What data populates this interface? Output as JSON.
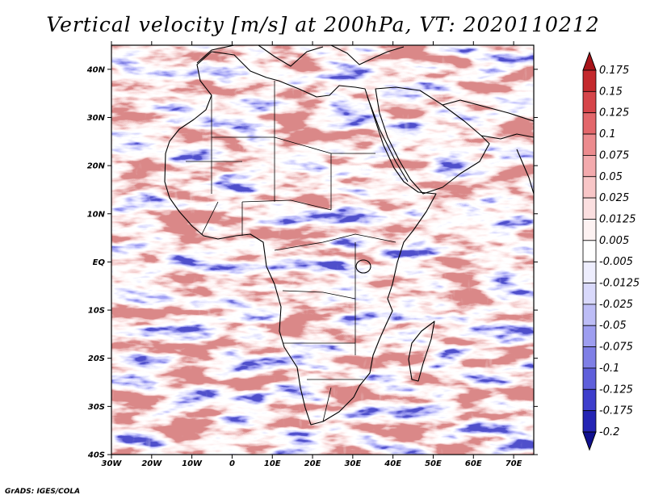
{
  "title": "Vertical velocity [m/s] at 200hPa, VT: 2020110212",
  "credit": "GrADS: IGES/COLA",
  "map": {
    "lon_range": [
      -30,
      75
    ],
    "lat_range": [
      -40,
      45
    ],
    "x_ticks": [
      "30W",
      "20W",
      "10W",
      "0",
      "10E",
      "20E",
      "30E",
      "40E",
      "50E",
      "60E",
      "70E"
    ],
    "y_ticks": [
      "40N",
      "30N",
      "20N",
      "10N",
      "EQ",
      "10S",
      "20S",
      "30S",
      "40S"
    ],
    "field": "vertical velocity",
    "level": "200hPa"
  },
  "colorbar": {
    "labels": [
      "0.175",
      "0.15",
      "0.125",
      "0.1",
      "0.075",
      "0.05",
      "0.025",
      "0.0125",
      "0.005",
      "-0.005",
      "-0.0125",
      "-0.025",
      "-0.05",
      "-0.075",
      "-0.1",
      "-0.125",
      "-0.175",
      "-0.2"
    ],
    "colors": [
      "#a8141a",
      "#c4292d",
      "#d6454a",
      "#e3676b",
      "#ec8b8e",
      "#f3aaad",
      "#f8c6c7",
      "#fbdfe0",
      "#fdf2f2",
      "#ffffff",
      "#eeeefe",
      "#d9d9fb",
      "#bdbdf6",
      "#9e9ef0",
      "#7f7fe6",
      "#5f5fdb",
      "#3e3ecc",
      "#2424b4",
      "#10108f"
    ]
  }
}
